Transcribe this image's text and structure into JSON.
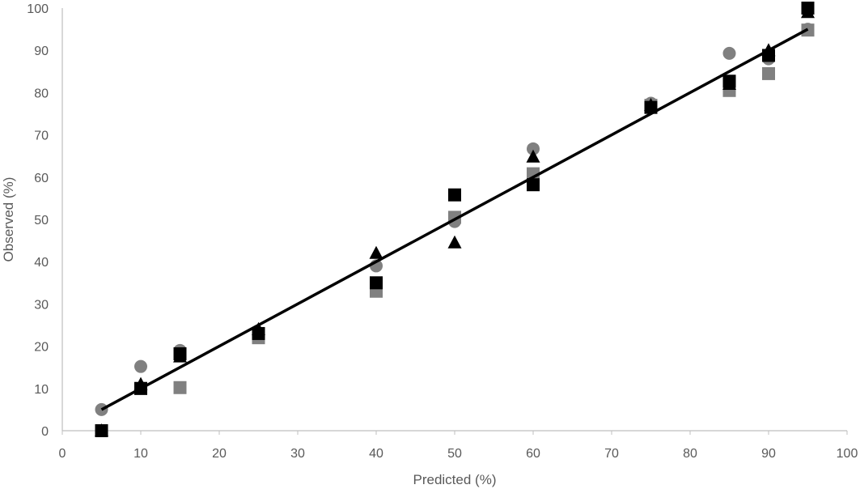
{
  "chart_data": {
    "type": "scatter",
    "title": "",
    "xlabel": "Predicted (%)",
    "ylabel": "Observed (%)",
    "xlim": [
      0,
      100
    ],
    "ylim": [
      0,
      100
    ],
    "xticks": [
      "0",
      "10",
      "20",
      "30",
      "40",
      "50",
      "60",
      "70",
      "80",
      "90",
      "100"
    ],
    "yticks": [
      "0",
      "10",
      "20",
      "30",
      "40",
      "50",
      "60",
      "70",
      "80",
      "90",
      "100"
    ],
    "grid": false,
    "legend": "none",
    "fit_line": {
      "x": [
        5,
        95
      ],
      "y": [
        5,
        95
      ],
      "color": "#000000"
    },
    "series": [
      {
        "marker": "circle",
        "color": "#808080",
        "x": [
          5,
          10,
          15,
          25,
          40,
          50,
          60,
          75,
          85,
          90,
          95
        ],
        "y": [
          5,
          15.2,
          19,
          23,
          39,
          49.5,
          66.7,
          77.5,
          89.3,
          88,
          95
        ]
      },
      {
        "marker": "square",
        "color": "#808080",
        "x": [
          5,
          10,
          15,
          25,
          40,
          50,
          60,
          75,
          85,
          90,
          95
        ],
        "y": [
          0,
          10,
          10.2,
          22,
          33,
          50.5,
          60.8,
          77,
          80.5,
          84.5,
          94.8
        ]
      },
      {
        "marker": "triangle",
        "color": "#000000",
        "x": [
          5,
          10,
          15,
          25,
          40,
          50,
          60,
          75,
          85,
          90,
          95
        ],
        "y": [
          0,
          11,
          17.5,
          24,
          42,
          44.5,
          64.8,
          77,
          82,
          90,
          99
        ]
      },
      {
        "marker": "square",
        "color": "#000000",
        "x": [
          5,
          10,
          15,
          25,
          40,
          50,
          60,
          75,
          85,
          90,
          95
        ],
        "y": [
          0,
          10,
          18.2,
          23,
          35,
          55.8,
          58.2,
          76.5,
          82.7,
          88.8,
          100
        ]
      }
    ]
  }
}
